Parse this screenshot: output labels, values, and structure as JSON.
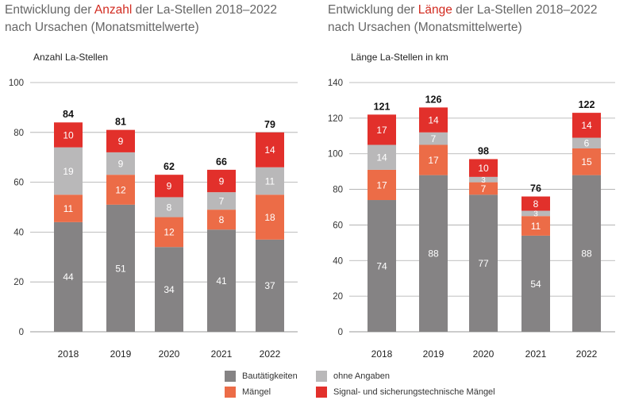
{
  "titles": {
    "left": {
      "pre": "Entwicklung der ",
      "highlight": "Anzahl",
      "post": " der La-Stellen 2018–2022",
      "line2": "nach Ursachen (Monatsmittelwerte)"
    },
    "right": {
      "pre": "Entwicklung der ",
      "highlight": "Länge",
      "post": " der La-Stellen 2018–2022",
      "line2": "nach Ursachen (Monatsmittelwerte)"
    }
  },
  "colors": {
    "bautaetigkeiten": "#858384",
    "maengel": "#ec6c47",
    "ohne_angaben": "#b9b8b9",
    "signal": "#e2302b",
    "highlight": "#d22b20"
  },
  "legend": {
    "bautaetigkeiten": "Bautätigkeiten",
    "ohne_angaben": "ohne Angaben",
    "maengel": "Mängel",
    "signal": "Signal- und sicherungstechnische Mängel"
  },
  "chart_data": [
    {
      "type": "bar",
      "stacked": true,
      "ylabel": "Anzahl La-Stellen",
      "ylim": [
        0,
        100
      ],
      "yticks": [
        0,
        20,
        40,
        60,
        80,
        100
      ],
      "categories": [
        "2018",
        "2019",
        "2020",
        "2021",
        "2022"
      ],
      "totals": [
        84,
        81,
        62,
        66,
        79
      ],
      "series": [
        {
          "name": "Bautätigkeiten",
          "values": [
            44,
            51,
            34,
            41,
            37
          ]
        },
        {
          "name": "Mängel",
          "values": [
            11,
            12,
            12,
            8,
            18
          ]
        },
        {
          "name": "ohne Angaben",
          "values": [
            19,
            9,
            8,
            7,
            11
          ]
        },
        {
          "name": "Signal- und sicherungstechnische Mängel",
          "values": [
            10,
            9,
            9,
            9,
            14
          ]
        }
      ],
      "grid": true,
      "legend_position": "bottom"
    },
    {
      "type": "bar",
      "stacked": true,
      "ylabel": "Länge La-Stellen in km",
      "ylim": [
        0,
        140
      ],
      "yticks": [
        0,
        20,
        40,
        60,
        80,
        100,
        120,
        140
      ],
      "categories": [
        "2018",
        "2019",
        "2020",
        "2021",
        "2022"
      ],
      "totals": [
        121,
        126,
        98,
        76,
        122
      ],
      "series": [
        {
          "name": "Bautätigkeiten",
          "values": [
            74,
            88,
            77,
            54,
            88
          ]
        },
        {
          "name": "Mängel",
          "values": [
            17,
            17,
            7,
            11,
            15
          ]
        },
        {
          "name": "ohne Angaben",
          "values": [
            14,
            7,
            3,
            3,
            6
          ]
        },
        {
          "name": "Signal- und sicherungstechnische Mängel",
          "values": [
            17,
            14,
            10,
            8,
            14
          ]
        }
      ],
      "grid": true,
      "legend_position": "bottom"
    }
  ]
}
